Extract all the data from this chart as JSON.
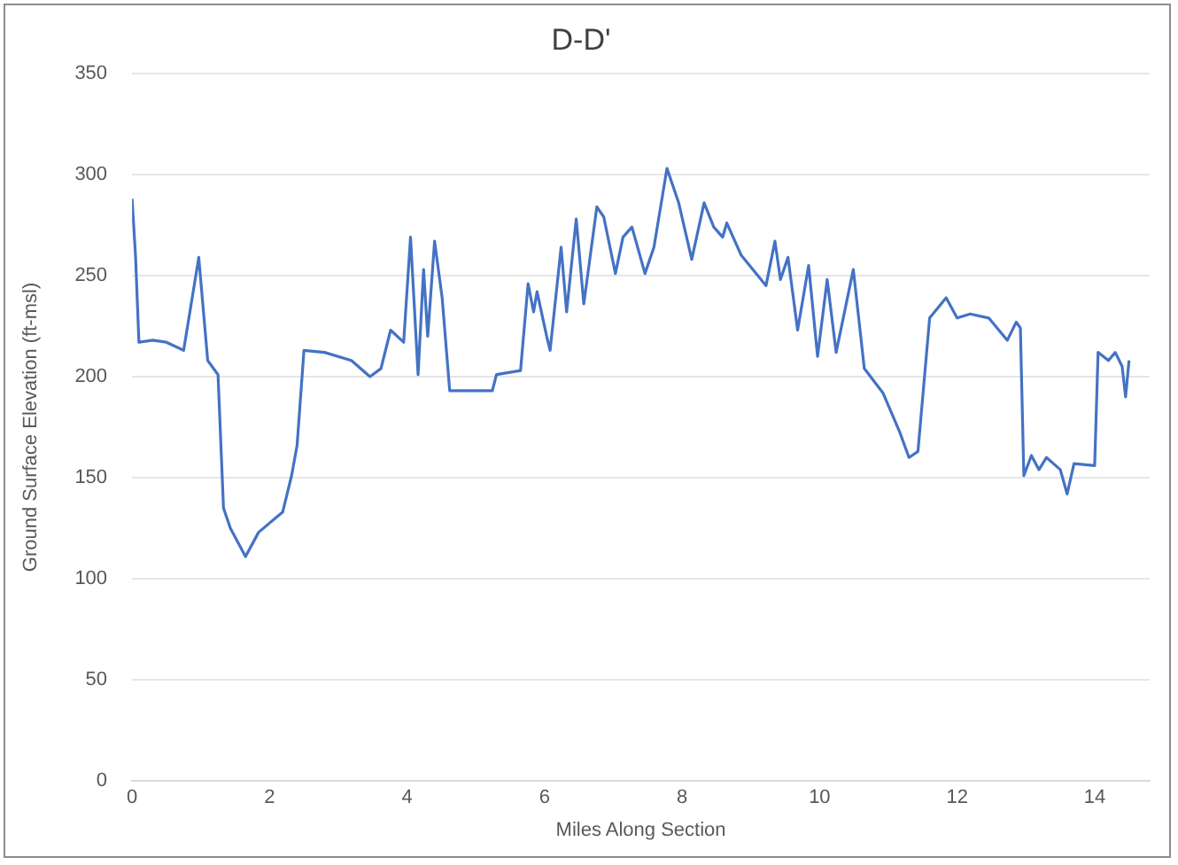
{
  "chart_data": {
    "type": "line",
    "title": "D-D'",
    "xlabel": "Miles Along Section",
    "ylabel": "Ground Surface Elevation (ft-msl)",
    "xlim": [
      0,
      14.8
    ],
    "xticks": [
      0,
      2,
      4,
      6,
      8,
      10,
      12,
      14
    ],
    "ylim": [
      0,
      350
    ],
    "yticks": [
      0,
      50,
      100,
      150,
      200,
      250,
      300,
      350
    ],
    "grid": "y",
    "legend": false,
    "marker": "none",
    "series": [
      {
        "color": "#4472c4",
        "x": [
          0,
          0.05,
          0.1,
          0.3,
          0.5,
          0.75,
          0.97,
          1.1,
          1.25,
          1.33,
          1.43,
          1.65,
          1.84,
          2.19,
          2.32,
          2.4,
          2.5,
          2.8,
          3.19,
          3.46,
          3.62,
          3.76,
          3.95,
          4.05,
          4.16,
          4.24,
          4.3,
          4.4,
          4.51,
          4.62,
          5.24,
          5.3,
          5.65,
          5.76,
          5.84,
          5.89,
          6.03,
          6.08,
          6.24,
          6.32,
          6.46,
          6.57,
          6.76,
          6.86,
          7.03,
          7.14,
          7.27,
          7.46,
          7.59,
          7.78,
          7.95,
          8.14,
          8.32,
          8.46,
          8.59,
          8.65,
          8.86,
          9.22,
          9.35,
          9.43,
          9.54,
          9.68,
          9.84,
          9.97,
          10.11,
          10.24,
          10.49,
          10.65,
          10.92,
          11.16,
          11.3,
          11.43,
          11.6,
          11.84,
          12.0,
          12.19,
          12.46,
          12.73,
          12.86,
          12.92,
          12.97,
          13.08,
          13.19,
          13.3,
          13.5,
          13.6,
          13.7,
          14.0,
          14.05,
          14.2,
          14.3,
          14.4,
          14.45,
          14.5
        ],
        "values": [
          288,
          260,
          217,
          218,
          217,
          213,
          259,
          208,
          201,
          135,
          125,
          111,
          123,
          133,
          151,
          166,
          213,
          212,
          208,
          200,
          204,
          223,
          217,
          269,
          201,
          253,
          220,
          267,
          239,
          193,
          193,
          201,
          203,
          246,
          232,
          242,
          220,
          213,
          264,
          232,
          278,
          236,
          284,
          279,
          251,
          269,
          274,
          251,
          264,
          303,
          286,
          258,
          286,
          274,
          269,
          276,
          260,
          245,
          267,
          248,
          259,
          223,
          255,
          210,
          248,
          212,
          253,
          204,
          192,
          173,
          160,
          163,
          229,
          239,
          229,
          231,
          229,
          218,
          227,
          224,
          151,
          161,
          154,
          160,
          154,
          142,
          157,
          156,
          212,
          208,
          212,
          205,
          190,
          208
        ]
      }
    ]
  }
}
